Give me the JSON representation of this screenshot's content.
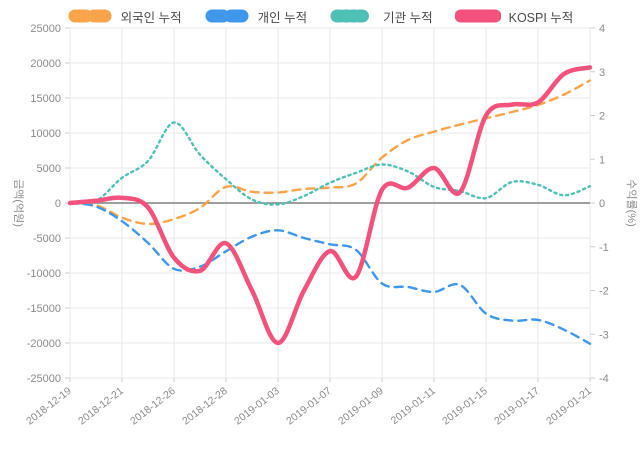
{
  "legend": {
    "items": [
      {
        "label": "외국인 누적",
        "color": "#F9A34B",
        "style": "dashed"
      },
      {
        "label": "개인 누적",
        "color": "#3E97EA",
        "style": "dashed"
      },
      {
        "label": "기관 누적",
        "color": "#4EC0B5",
        "style": "dotted"
      },
      {
        "label": "KOSPI 누적",
        "color": "#F2527B",
        "style": "solid"
      }
    ]
  },
  "axes": {
    "left_title": "금액(억원)",
    "right_title": "수익률(%)",
    "left_ticks": [
      25000,
      20000,
      15000,
      10000,
      5000,
      0,
      -5000,
      -10000,
      -15000,
      -20000,
      -25000
    ],
    "right_ticks": [
      4,
      3,
      2,
      1,
      0,
      -1,
      -2,
      -3,
      -4
    ]
  },
  "colors": {
    "grid": "#e8e8e8",
    "zero_line": "#7f7f7f",
    "tick_text": "#8a8a8a",
    "legend_text": "#4a4a4a"
  },
  "chart_data": {
    "type": "line",
    "x": [
      "2018-12-19",
      "2018-12-20",
      "2018-12-21",
      "2018-12-24",
      "2018-12-26",
      "2018-12-27",
      "2018-12-28",
      "2019-01-02",
      "2019-01-03",
      "2019-01-04",
      "2019-01-07",
      "2019-01-08",
      "2019-01-09",
      "2019-01-10",
      "2019-01-11",
      "2019-01-14",
      "2019-01-15",
      "2019-01-16",
      "2019-01-17",
      "2019-01-18",
      "2019-01-21"
    ],
    "x_axis_labels": [
      "2018-12-19",
      "2018-12-21",
      "2018-12-26",
      "2018-12-28",
      "2019-01-03",
      "2019-01-07",
      "2019-01-09",
      "2019-01-11",
      "2019-01-15",
      "2019-01-17",
      "2019-01-21"
    ],
    "x_label_every": 2,
    "left_ylim": [
      -25000,
      25000
    ],
    "right_ylim": [
      -4,
      4
    ],
    "ylabel_left": "금액(억원)",
    "ylabel_right": "수익률(%)",
    "grid": true,
    "legend_position": "top",
    "series": [
      {
        "name": "외국인 누적",
        "axis": "left",
        "color": "#F9A34B",
        "dash": "dashed",
        "width": 2.4,
        "values": [
          0,
          -300,
          -2100,
          -3000,
          -2300,
          -700,
          2300,
          1600,
          1500,
          2000,
          2200,
          2800,
          6500,
          9000,
          10200,
          11200,
          12100,
          13000,
          14000,
          15500,
          17500
        ]
      },
      {
        "name": "개인 누적",
        "axis": "left",
        "color": "#3E97EA",
        "dash": "dashed",
        "width": 2.4,
        "values": [
          0,
          -500,
          -2600,
          -5700,
          -9400,
          -9100,
          -6900,
          -4800,
          -3900,
          -5000,
          -5900,
          -6700,
          -11500,
          -12000,
          -12700,
          -11700,
          -15800,
          -16800,
          -16700,
          -18100,
          -20100
        ]
      },
      {
        "name": "기관 누적",
        "axis": "left",
        "color": "#4EC0B5",
        "dash": "dotted",
        "width": 2.4,
        "values": [
          0,
          300,
          3600,
          6000,
          11500,
          6900,
          3400,
          500,
          -200,
          1000,
          2900,
          4300,
          5500,
          4500,
          2300,
          1700,
          700,
          3000,
          2600,
          1100,
          2400
        ]
      },
      {
        "name": "KOSPI 누적",
        "axis": "right",
        "color": "#F2527B",
        "dash": "solid",
        "width": 4.5,
        "values": [
          0,
          0.05,
          0.12,
          -0.1,
          -1.25,
          -1.55,
          -0.92,
          -2.0,
          -3.2,
          -2.0,
          -1.1,
          -1.68,
          0.3,
          0.35,
          0.8,
          0.25,
          2.0,
          2.25,
          2.3,
          2.95,
          3.1
        ]
      }
    ]
  }
}
